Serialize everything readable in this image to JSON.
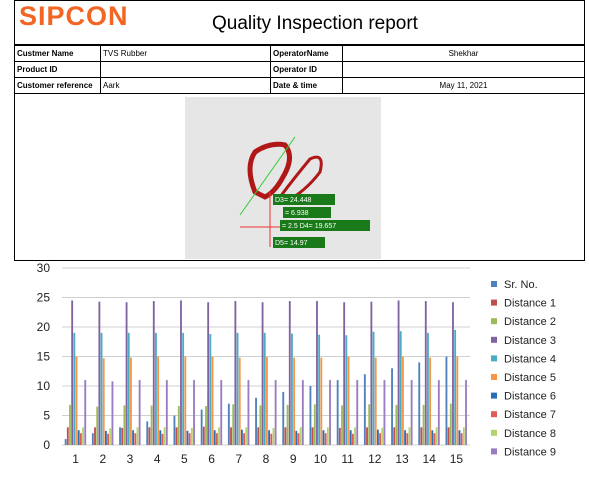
{
  "header": {
    "logo": "SIPCON",
    "title": "Quality Inspection report"
  },
  "table": {
    "rows": [
      [
        "Custmer Name",
        "TVS Rubber",
        "OperatorName",
        "Shekhar"
      ],
      [
        "Product ID",
        null,
        "Operator ID",
        null
      ],
      [
        "Customer reference",
        "Aark",
        "Date & time",
        "May 11, 2021"
      ]
    ]
  },
  "image": {
    "labels": [
      "D3= 24.448",
      "= 6.938",
      "= 2.5 D4= 19.657",
      "D5= 14.97"
    ]
  },
  "chart_data": {
    "type": "bar",
    "categories": [
      "1",
      "2",
      "3",
      "4",
      "5",
      "6",
      "7",
      "8",
      "9",
      "10",
      "11",
      "12",
      "13",
      "14",
      "15"
    ],
    "ylim": [
      0,
      30
    ],
    "yticks": [
      0,
      5,
      10,
      15,
      20,
      25,
      30
    ],
    "legend": "right",
    "series": [
      {
        "name": "Sr. No.",
        "color": "#4f81bd",
        "values": [
          1,
          2,
          3,
          4,
          5,
          6,
          7,
          8,
          9,
          10,
          11,
          12,
          13,
          14,
          15
        ]
      },
      {
        "name": "Distance 1",
        "color": "#c0504d",
        "values": [
          3,
          3,
          2.9,
          3,
          3,
          3.1,
          3,
          3,
          3,
          3,
          2.9,
          3,
          3,
          3,
          3
        ]
      },
      {
        "name": "Distance 2",
        "color": "#9bbb59",
        "values": [
          6.8,
          6.5,
          6.7,
          6.7,
          6.6,
          6.6,
          6.9,
          6.7,
          6.8,
          6.9,
          6.7,
          6.9,
          6.8,
          6.8,
          7
        ]
      },
      {
        "name": "Distance 3",
        "color": "#8064a2",
        "values": [
          24.5,
          24.3,
          24.2,
          24.4,
          24.5,
          24.2,
          24.4,
          24.2,
          24.4,
          24.4,
          24.2,
          24.3,
          24.5,
          24.4,
          24.2
        ]
      },
      {
        "name": "Distance 4",
        "color": "#4bacc6",
        "values": [
          19,
          19,
          19,
          19,
          19,
          18.8,
          19,
          19,
          18.9,
          18.7,
          18.6,
          19.2,
          19.3,
          19,
          19.5
        ]
      },
      {
        "name": "Distance 5",
        "color": "#f79646",
        "values": [
          15,
          14.7,
          14.8,
          15,
          15,
          15,
          14.8,
          14.9,
          14.8,
          14.8,
          15,
          14.8,
          15,
          14.8,
          15
        ]
      },
      {
        "name": "Distance 6",
        "color": "#2c6db8",
        "values": [
          2.5,
          2.4,
          2.5,
          2.5,
          2.4,
          2.5,
          2.6,
          2.5,
          2.4,
          2.5,
          2.5,
          2.6,
          2.5,
          2.5,
          2.5
        ]
      },
      {
        "name": "Distance 7",
        "color": "#e05b55",
        "values": [
          2,
          1.9,
          2,
          1.9,
          2,
          2,
          2,
          1.9,
          2,
          2,
          1.9,
          2,
          2,
          2,
          2
        ]
      },
      {
        "name": "Distance 8",
        "color": "#b3d36b",
        "values": [
          3,
          2.8,
          3,
          3,
          2.9,
          3,
          3,
          2.9,
          3,
          3,
          3,
          2.9,
          3,
          3,
          3
        ]
      },
      {
        "name": "Distance 9",
        "color": "#9a7cc2",
        "values": [
          11,
          10.8,
          11,
          11,
          11,
          11,
          11,
          11,
          11,
          11,
          11,
          11,
          11,
          11,
          11
        ]
      }
    ]
  }
}
